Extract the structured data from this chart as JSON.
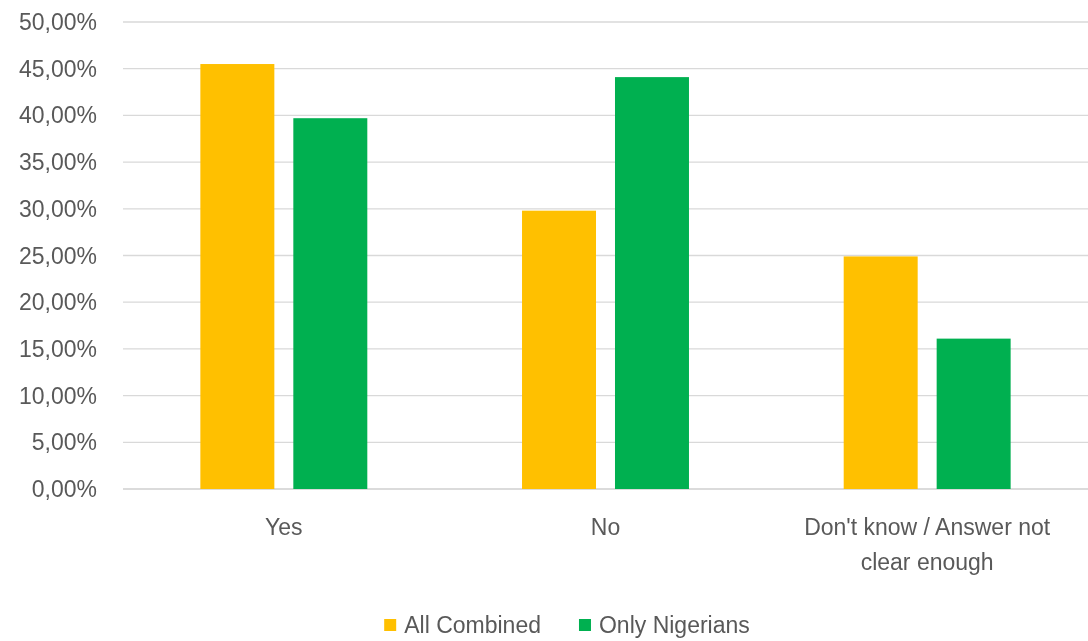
{
  "chart_data": {
    "type": "bar",
    "categories": [
      "Yes",
      "No",
      "Don't know / Answer not clear enough"
    ],
    "series": [
      {
        "name": "All Combined",
        "color": "#ffc000",
        "values": [
          45.5,
          29.8,
          24.9
        ]
      },
      {
        "name": "Only Nigerians",
        "color": "#00b050",
        "values": [
          39.7,
          44.1,
          16.1
        ]
      }
    ],
    "ylim": [
      0,
      50
    ],
    "yticks": [
      {
        "value": 0,
        "label": "0,00%"
      },
      {
        "value": 5,
        "label": "5,00%"
      },
      {
        "value": 10,
        "label": "10,00%"
      },
      {
        "value": 15,
        "label": "15,00%"
      },
      {
        "value": 20,
        "label": "20,00%"
      },
      {
        "value": 25,
        "label": "25,00%"
      },
      {
        "value": 30,
        "label": "30,00%"
      },
      {
        "value": 35,
        "label": "35,00%"
      },
      {
        "value": 40,
        "label": "40,00%"
      },
      {
        "value": 45,
        "label": "45,00%"
      },
      {
        "value": 50,
        "label": "50,00%"
      }
    ],
    "grid": "y",
    "legend": "bottom"
  }
}
